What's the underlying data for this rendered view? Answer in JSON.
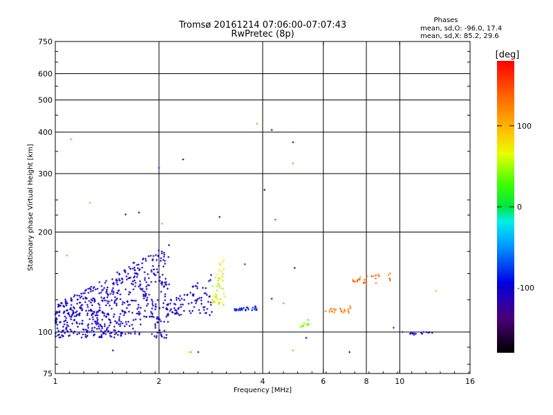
{
  "chart_data": {
    "type": "scatter",
    "title_line1": "Tromsø 20161214 07:06:00-07:07:43",
    "title_line2": "RwPretec (8p)",
    "phase_title": "Phases",
    "phase_stats": [
      "mean, sd,O: -96.0, 17.4",
      "mean, sd,X: 85.2, 29.6"
    ],
    "xlabel": "Frequency [MHz]",
    "ylabel": "Stationary phase Virtual Height [km]",
    "x_scale": "log2",
    "y_scale": "log",
    "xlim": [
      1,
      16
    ],
    "ylim": [
      75,
      750
    ],
    "x_ticks": [
      1,
      2,
      4,
      6,
      8,
      10,
      16
    ],
    "x_tick_labels": [
      "1",
      "2",
      "4",
      "6",
      "8",
      "10",
      "16"
    ],
    "y_ticks": [
      75,
      100,
      200,
      300,
      400,
      500,
      600,
      750
    ],
    "y_tick_labels": [
      "75",
      "100",
      "200",
      "300",
      "400",
      "500",
      "600",
      "750"
    ],
    "x_gridlines": [
      2,
      4,
      6,
      8,
      10
    ],
    "y_gridlines": [
      100,
      200,
      300,
      400,
      500,
      600
    ],
    "grid": true,
    "colorbar": {
      "label": "[deg]",
      "range": [
        -180,
        180
      ],
      "ticks": [
        100,
        0,
        -100
      ],
      "tick_labels": [
        "100",
        "0",
        "-100"
      ]
    },
    "clusters": [
      {
        "x": [
          1.0,
          2.15
        ],
        "y": [
          96,
          185
        ],
        "n": 620,
        "phase": [
          -118,
          -92
        ]
      },
      {
        "x": [
          2.1,
          2.85
        ],
        "y": [
          112,
          150
        ],
        "n": 90,
        "phase": [
          -115,
          -95
        ]
      },
      {
        "x": [
          2.85,
          3.1
        ],
        "y": [
          120,
          178
        ],
        "n": 45,
        "phase": [
          40,
          95
        ]
      },
      {
        "x": [
          3.3,
          3.85
        ],
        "y": [
          116,
          120
        ],
        "n": 28,
        "phase": [
          -95,
          -78
        ]
      },
      {
        "x": [
          5.15,
          5.45
        ],
        "y": [
          103,
          110
        ],
        "n": 12,
        "phase": [
          10,
          60
        ]
      },
      {
        "x": [
          6.0,
          7.2
        ],
        "y": [
          114,
          121
        ],
        "n": 22,
        "phase": [
          100,
          150
        ]
      },
      {
        "x": [
          7.1,
          9.5
        ],
        "y": [
          140,
          152
        ],
        "n": 26,
        "phase": [
          110,
          170
        ]
      },
      {
        "x": [
          10.3,
          12.8
        ],
        "y": [
          98,
          102
        ],
        "n": 14,
        "phase": [
          -120,
          -95
        ]
      }
    ],
    "points": [
      {
        "x": 1.11,
        "y": 381,
        "phase": 20
      },
      {
        "x": 1.26,
        "y": 245,
        "phase": 110
      },
      {
        "x": 1.08,
        "y": 170,
        "phase": 110
      },
      {
        "x": 1.6,
        "y": 226,
        "phase": -110
      },
      {
        "x": 1.75,
        "y": 229,
        "phase": -110
      },
      {
        "x": 2.0,
        "y": 312,
        "phase": -90
      },
      {
        "x": 2.35,
        "y": 331,
        "phase": -110
      },
      {
        "x": 2.04,
        "y": 212,
        "phase": 110
      },
      {
        "x": 3.0,
        "y": 222,
        "phase": -120
      },
      {
        "x": 3.85,
        "y": 424,
        "phase": 115
      },
      {
        "x": 4.05,
        "y": 268,
        "phase": -115
      },
      {
        "x": 4.25,
        "y": 406,
        "phase": -150
      },
      {
        "x": 4.35,
        "y": 218,
        "phase": 150
      },
      {
        "x": 4.9,
        "y": 373,
        "phase": -95
      },
      {
        "x": 4.9,
        "y": 322,
        "phase": 120
      },
      {
        "x": 4.9,
        "y": 88,
        "phase": 115
      },
      {
        "x": 2.45,
        "y": 87,
        "phase": 100
      },
      {
        "x": 2.48,
        "y": 87,
        "phase": 110
      },
      {
        "x": 2.6,
        "y": 87,
        "phase": -115
      },
      {
        "x": 1.47,
        "y": 88,
        "phase": -110
      },
      {
        "x": 2.1,
        "y": 96,
        "phase": -110
      },
      {
        "x": 3.55,
        "y": 160,
        "phase": -80
      },
      {
        "x": 4.25,
        "y": 126,
        "phase": -90
      },
      {
        "x": 4.6,
        "y": 122,
        "phase": 20
      },
      {
        "x": 5.35,
        "y": 96,
        "phase": -95
      },
      {
        "x": 7.15,
        "y": 87,
        "phase": -150
      },
      {
        "x": 12.75,
        "y": 133,
        "phase": 100
      },
      {
        "x": 9.6,
        "y": 103,
        "phase": -80
      },
      {
        "x": 10.2,
        "y": 100,
        "phase": -120
      },
      {
        "x": 4.95,
        "y": 156,
        "phase": -95
      }
    ]
  }
}
